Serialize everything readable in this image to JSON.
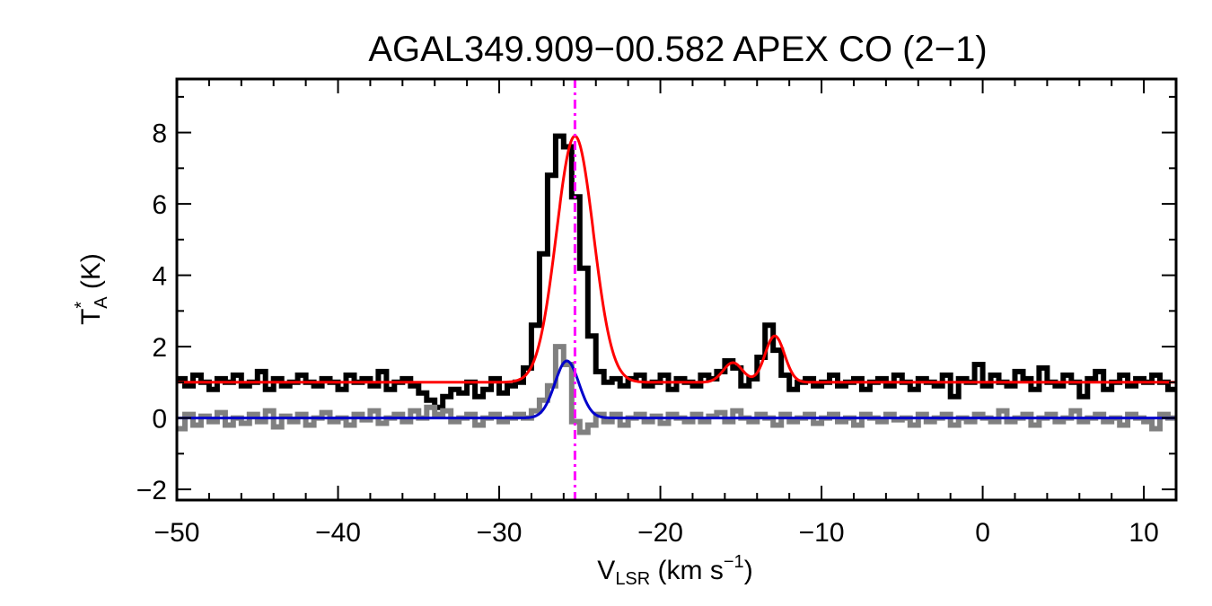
{
  "chart_data": {
    "type": "line",
    "title": "AGAL349.909−00.582  APEX CO (2−1)",
    "xlabel": {
      "main": "V",
      "sub": "LSR",
      "rest": " (km s",
      "sup": "−1",
      "end": ")"
    },
    "ylabel": {
      "main": "T",
      "sup": "*",
      "sub": "A",
      "rest": " (K)"
    },
    "xlim": [
      -50,
      12
    ],
    "ylim": [
      -2.3,
      9.5
    ],
    "x_ticks": [
      -50,
      -40,
      -30,
      -20,
      -10,
      0,
      10
    ],
    "x_tick_labels": [
      "−50",
      "−40",
      "−30",
      "−20",
      "−10",
      "0",
      "10"
    ],
    "y_ticks": [
      -2,
      0,
      2,
      4,
      6,
      8
    ],
    "y_tick_labels": [
      "−2",
      "0",
      "2",
      "4",
      "6",
      "8"
    ],
    "vline": {
      "x": -25.3,
      "color": "#ff00ff",
      "style": "dash-dot"
    },
    "grid": false,
    "colors": {
      "observed": "#000000",
      "residual": "#808080",
      "fit": "#ff0000",
      "component": "#0000cc"
    },
    "series": [
      {
        "style": "step",
        "color": "#000000",
        "x": [
          -49.75,
          -49.25,
          -48.75,
          -48.25,
          -47.75,
          -47.25,
          -46.75,
          -46.25,
          -45.75,
          -45.25,
          -44.75,
          -44.25,
          -43.75,
          -43.25,
          -42.75,
          -42.25,
          -41.75,
          -41.25,
          -40.75,
          -40.25,
          -39.75,
          -39.25,
          -38.75,
          -38.25,
          -37.75,
          -37.25,
          -36.75,
          -36.25,
          -35.75,
          -35.25,
          -34.75,
          -34.25,
          -33.75,
          -33.25,
          -32.75,
          -32.25,
          -31.75,
          -31.25,
          -30.75,
          -30.25,
          -29.75,
          -29.25,
          -28.75,
          -28.25,
          -27.75,
          -27.25,
          -26.75,
          -26.25,
          -25.75,
          -25.25,
          -24.75,
          -24.25,
          -23.75,
          -23.25,
          -22.75,
          -22.25,
          -21.75,
          -21.25,
          -20.75,
          -20.25,
          -19.75,
          -19.25,
          -18.75,
          -18.25,
          -17.75,
          -17.25,
          -16.75,
          -16.25,
          -15.75,
          -15.25,
          -14.75,
          -14.25,
          -13.75,
          -13.25,
          -12.75,
          -12.25,
          -11.75,
          -11.25,
          -10.75,
          -10.25,
          -9.75,
          -9.25,
          -8.75,
          -8.25,
          -7.75,
          -7.25,
          -6.75,
          -6.25,
          -5.75,
          -5.25,
          -4.75,
          -4.25,
          -3.75,
          -3.25,
          -2.75,
          -2.25,
          -1.75,
          -1.25,
          -0.75,
          -0.25,
          0.25,
          0.75,
          1.25,
          1.75,
          2.25,
          2.75,
          3.25,
          3.75,
          4.25,
          4.75,
          5.25,
          5.75,
          6.25,
          6.75,
          7.25,
          7.75,
          8.25,
          8.75,
          9.25,
          9.75,
          10.25,
          10.75,
          11.25,
          11.75
        ],
        "y": [
          1.1,
          0.9,
          1.2,
          1.0,
          0.8,
          1.1,
          1.0,
          1.2,
          0.9,
          1.0,
          1.3,
          0.8,
          1.1,
          0.9,
          1.0,
          1.2,
          1.0,
          0.9,
          1.1,
          1.0,
          0.8,
          1.2,
          1.0,
          1.1,
          0.9,
          1.3,
          0.8,
          1.0,
          1.1,
          0.9,
          0.7,
          0.5,
          0.3,
          0.6,
          0.8,
          0.7,
          1.0,
          0.6,
          0.8,
          1.1,
          0.7,
          0.9,
          1.0,
          1.4,
          2.6,
          4.6,
          6.8,
          7.9,
          7.6,
          6.2,
          4.2,
          2.3,
          1.3,
          1.0,
          1.1,
          0.9,
          1.1,
          1.2,
          0.9,
          1.0,
          1.2,
          0.8,
          1.1,
          1.0,
          0.9,
          1.2,
          1.1,
          1.3,
          1.6,
          1.4,
          0.9,
          1.1,
          1.7,
          2.6,
          1.9,
          1.2,
          0.8,
          1.0,
          1.1,
          0.9,
          1.0,
          1.2,
          0.9,
          1.0,
          1.1,
          0.8,
          1.0,
          1.1,
          0.9,
          1.2,
          1.0,
          0.8,
          1.1,
          1.0,
          0.9,
          1.2,
          0.6,
          1.1,
          1.0,
          1.5,
          0.9,
          1.2,
          1.0,
          0.9,
          1.3,
          1.1,
          0.8,
          1.4,
          1.0,
          0.9,
          1.2,
          1.0,
          0.6,
          1.1,
          1.3,
          0.8,
          1.0,
          1.2,
          0.9,
          1.1,
          1.0,
          1.2,
          1.0,
          0.8
        ]
      },
      {
        "style": "step",
        "color": "#808080",
        "x": [
          -49.75,
          -49.25,
          -48.75,
          -48.25,
          -47.75,
          -47.25,
          -46.75,
          -46.25,
          -45.75,
          -45.25,
          -44.75,
          -44.25,
          -43.75,
          -43.25,
          -42.75,
          -42.25,
          -41.75,
          -41.25,
          -40.75,
          -40.25,
          -39.75,
          -39.25,
          -38.75,
          -38.25,
          -37.75,
          -37.25,
          -36.75,
          -36.25,
          -35.75,
          -35.25,
          -34.75,
          -34.25,
          -33.75,
          -33.25,
          -32.75,
          -32.25,
          -31.75,
          -31.25,
          -30.75,
          -30.25,
          -29.75,
          -29.25,
          -28.75,
          -28.25,
          -27.75,
          -27.25,
          -26.75,
          -26.25,
          -25.75,
          -25.25,
          -24.75,
          -24.25,
          -23.75,
          -23.25,
          -22.75,
          -22.25,
          -21.75,
          -21.25,
          -20.75,
          -20.25,
          -19.75,
          -19.25,
          -18.75,
          -18.25,
          -17.75,
          -17.25,
          -16.75,
          -16.25,
          -15.75,
          -15.25,
          -14.75,
          -14.25,
          -13.75,
          -13.25,
          -12.75,
          -12.25,
          -11.75,
          -11.25,
          -10.75,
          -10.25,
          -9.75,
          -9.25,
          -8.75,
          -8.25,
          -7.75,
          -7.25,
          -6.75,
          -6.25,
          -5.75,
          -5.25,
          -4.75,
          -4.25,
          -3.75,
          -3.25,
          -2.75,
          -2.25,
          -1.75,
          -1.25,
          -0.75,
          -0.25,
          0.25,
          0.75,
          1.25,
          1.75,
          2.25,
          2.75,
          3.25,
          3.75,
          4.25,
          4.75,
          5.25,
          5.75,
          6.25,
          6.75,
          7.25,
          7.75,
          8.25,
          8.75,
          9.25,
          9.75,
          10.25,
          10.75,
          11.25,
          11.75
        ],
        "y": [
          -0.3,
          0.1,
          -0.2,
          0.05,
          -0.1,
          0.15,
          -0.2,
          0.0,
          -0.15,
          0.1,
          -0.1,
          0.2,
          -0.25,
          0.05,
          -0.1,
          0.1,
          -0.2,
          0.0,
          0.15,
          -0.1,
          0.0,
          -0.2,
          0.1,
          -0.05,
          0.2,
          -0.15,
          0.0,
          0.1,
          -0.1,
          0.2,
          0.0,
          0.3,
          0.1,
          0.2,
          -0.1,
          0.0,
          0.1,
          -0.2,
          0.0,
          0.1,
          -0.1,
          0.0,
          0.1,
          0.0,
          0.2,
          0.5,
          0.9,
          2.0,
          1.5,
          -0.1,
          -0.4,
          -0.2,
          0.1,
          -0.1,
          0.1,
          -0.2,
          0.0,
          0.1,
          -0.1,
          0.05,
          -0.15,
          0.1,
          0.0,
          -0.1,
          0.1,
          -0.1,
          0.05,
          0.15,
          -0.1,
          0.2,
          0.0,
          -0.1,
          0.1,
          0.0,
          -0.2,
          0.1,
          -0.1,
          0.0,
          0.1,
          -0.15,
          0.0,
          0.1,
          -0.1,
          0.0,
          -0.2,
          0.1,
          0.0,
          -0.1,
          0.1,
          -0.05,
          0.0,
          -0.2,
          0.1,
          -0.1,
          0.0,
          0.1,
          -0.2,
          0.0,
          -0.1,
          0.1,
          0.0,
          -0.1,
          0.2,
          -0.1,
          0.0,
          0.1,
          -0.2,
          0.0,
          0.1,
          -0.1,
          0.0,
          0.2,
          -0.1,
          0.0,
          0.1,
          -0.1,
          0.0,
          -0.2,
          0.1,
          0.0,
          -0.1,
          -0.3,
          0.1,
          0.0
        ]
      },
      {
        "style": "line",
        "color": "#ff0000",
        "baseline": 1.0,
        "components": [
          {
            "center": -25.3,
            "amplitude": 6.9,
            "sigma": 1.15
          },
          {
            "center": -15.5,
            "amplitude": 0.55,
            "sigma": 0.6
          },
          {
            "center": -12.9,
            "amplitude": 1.3,
            "sigma": 0.6
          }
        ]
      },
      {
        "style": "line",
        "color": "#0000cc",
        "baseline": 0.0,
        "components": [
          {
            "center": -25.8,
            "amplitude": 1.6,
            "sigma": 0.75
          }
        ]
      }
    ]
  }
}
